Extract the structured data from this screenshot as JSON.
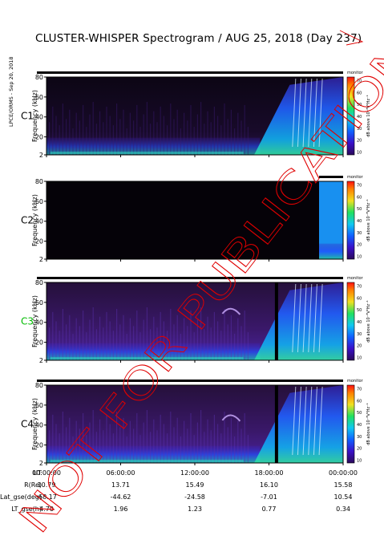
{
  "title": "CLUSTER-WHISPER Spectrogram / AUG 25, 2018 (Day 237)",
  "side_label": "LPCE/ORMS - Sep 20, 2018",
  "watermark": "NOT FOR PUBLICATION",
  "colorbar": {
    "label": "dB above 10⁻⁸V²Hz⁻¹",
    "ticks": [
      "70",
      "60",
      "50",
      "40",
      "30",
      "20",
      "10"
    ]
  },
  "status_label": "monitor",
  "chart_data": {
    "type": "heatmap",
    "x_ticks": [
      "00:00:00",
      "06:00:00",
      "12:00:00",
      "18:00:00",
      "00:00:00"
    ],
    "panels": [
      {
        "name": "C1",
        "color": "#000000",
        "ylabel": "Frequency (kHz)",
        "y_ticks": [
          "80",
          "60",
          "40",
          "20",
          "2"
        ],
        "ylim": [
          2,
          80
        ]
      },
      {
        "name": "C2",
        "color": "#000000",
        "ylabel": "Frequency (kHz)",
        "y_ticks": [
          "80",
          "60",
          "40",
          "20",
          "2"
        ],
        "ylim": [
          2,
          80
        ]
      },
      {
        "name": "C3",
        "color": "#00bb00",
        "ylabel": "Frequency (kHz)",
        "y_ticks": [
          "80",
          "60",
          "40",
          "20",
          "2"
        ],
        "ylim": [
          2,
          80
        ]
      },
      {
        "name": "C4",
        "color": "#000000",
        "ylabel": "Frequency (kHz)",
        "y_ticks": [
          "80",
          "60",
          "40",
          "20",
          "2"
        ],
        "ylim": [
          2,
          80
        ]
      }
    ],
    "colorbar_range": [
      10,
      70
    ],
    "ephemeris": [
      {
        "label": "UT",
        "values": [
          "00:00:00",
          "06:00:00",
          "12:00:00",
          "18:00:00",
          "00:00:00"
        ]
      },
      {
        "label": "R(Re)",
        "values": [
          "10.79",
          "13.71",
          "15.49",
          "16.10",
          "15.58"
        ]
      },
      {
        "label": "Lat_gse(deg)",
        "values": [
          "-68.17",
          "-44.62",
          "-24.58",
          "-7.01",
          "10.54"
        ]
      },
      {
        "label": "LT_gse(h)",
        "values": [
          "4.70",
          "1.96",
          "1.23",
          "0.77",
          "0.34"
        ]
      }
    ]
  }
}
